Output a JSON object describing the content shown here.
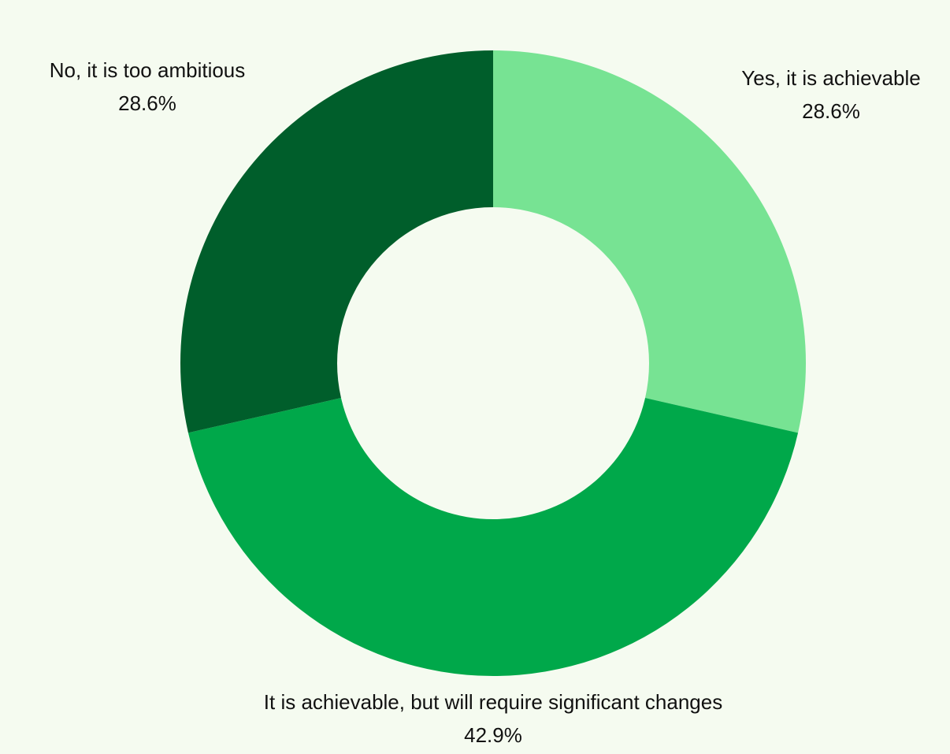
{
  "chart_data": {
    "type": "pie",
    "variant": "donut",
    "start": "top, clockwise",
    "labels": [
      "Yes, it is achievable",
      "It is achievable, but will require significant changes",
      "No, it is too ambitious"
    ],
    "values": [
      28.6,
      42.9,
      28.6
    ],
    "value_labels": [
      "28.6%",
      "42.9%",
      "28.6%"
    ],
    "colors": [
      "#77e393",
      "#00a84a",
      "#005e2b"
    ],
    "background": "#f5fbf0",
    "legend": "none"
  }
}
